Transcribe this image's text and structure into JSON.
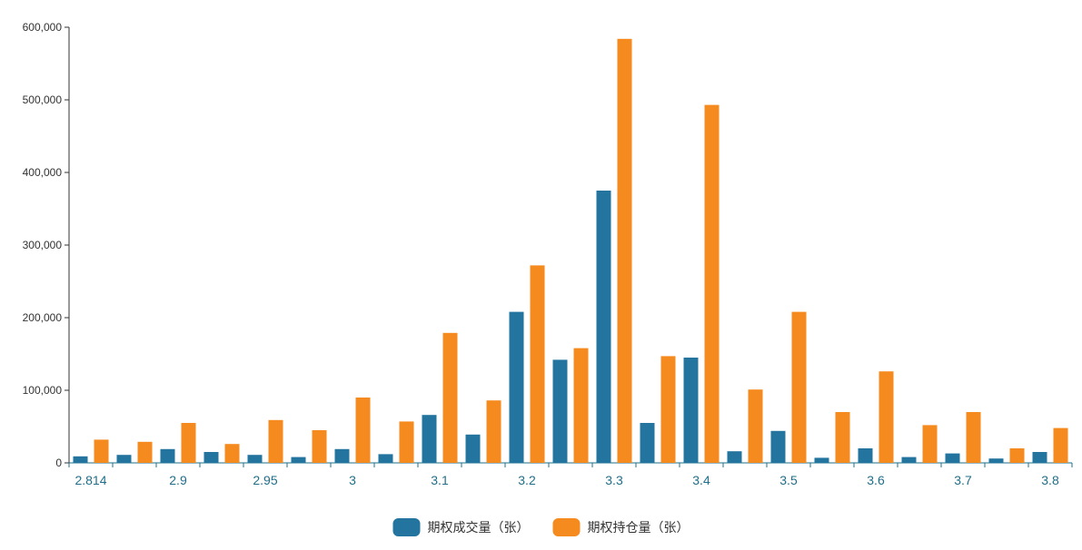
{
  "chart_data": {
    "type": "bar",
    "title": "",
    "xlabel": "",
    "ylabel": "",
    "ylim": [
      0,
      600000
    ],
    "yticks": [
      0,
      100000,
      200000,
      300000,
      400000,
      500000,
      600000
    ],
    "ytick_labels": [
      "0",
      "100,000",
      "200,000",
      "300,000",
      "400,000",
      "500,000",
      "600,000"
    ],
    "grid": false,
    "legend_position": "bottom-center",
    "categories": [
      "2.814",
      "",
      "2.9",
      "",
      "2.95",
      "",
      "3",
      "",
      "3.1",
      "",
      "3.2",
      "",
      "3.3",
      "",
      "3.4",
      "",
      "3.5",
      "",
      "3.6",
      "",
      "3.7",
      "",
      "3.8"
    ],
    "series": [
      {
        "name": "期权成交量（张）",
        "color": "#23749f",
        "values": [
          9000,
          11000,
          19000,
          15000,
          11000,
          8000,
          19000,
          12000,
          66000,
          39000,
          208000,
          142000,
          375000,
          55000,
          145000,
          16000,
          44000,
          7000,
          20000,
          8000,
          13000,
          6000,
          15000
        ]
      },
      {
        "name": "期权持仓量（张）",
        "color": "#f58a1f",
        "values": [
          32000,
          29000,
          55000,
          26000,
          59000,
          45000,
          90000,
          57000,
          179000,
          86000,
          272000,
          158000,
          584000,
          147000,
          493000,
          101000,
          208000,
          70000,
          126000,
          52000,
          70000,
          20000,
          48000
        ]
      }
    ]
  }
}
